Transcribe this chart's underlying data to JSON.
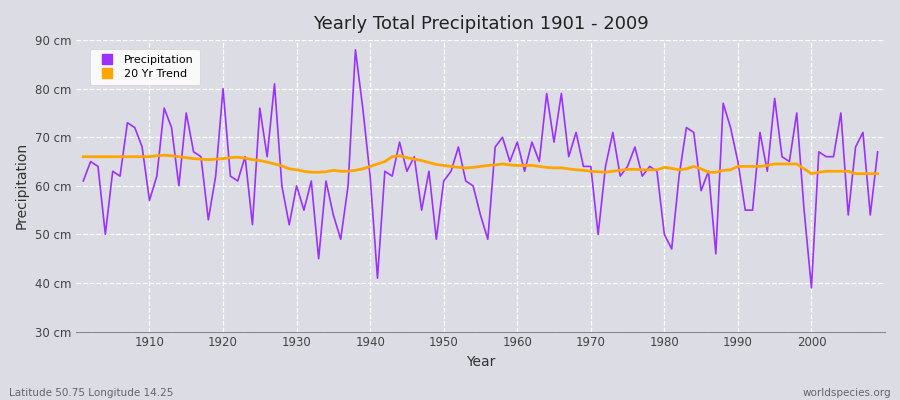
{
  "title": "Yearly Total Precipitation 1901 - 2009",
  "xlabel": "Year",
  "ylabel": "Precipitation",
  "subtitle_left": "Latitude 50.75 Longitude 14.25",
  "subtitle_right": "worldspecies.org",
  "years": [
    1901,
    1902,
    1903,
    1904,
    1905,
    1906,
    1907,
    1908,
    1909,
    1910,
    1911,
    1912,
    1913,
    1914,
    1915,
    1916,
    1917,
    1918,
    1919,
    1920,
    1921,
    1922,
    1923,
    1924,
    1925,
    1926,
    1927,
    1928,
    1929,
    1930,
    1931,
    1932,
    1933,
    1934,
    1935,
    1936,
    1937,
    1938,
    1939,
    1940,
    1941,
    1942,
    1943,
    1944,
    1945,
    1946,
    1947,
    1948,
    1949,
    1950,
    1951,
    1952,
    1953,
    1954,
    1955,
    1956,
    1957,
    1958,
    1959,
    1960,
    1961,
    1962,
    1963,
    1964,
    1965,
    1966,
    1967,
    1968,
    1969,
    1970,
    1971,
    1972,
    1973,
    1974,
    1975,
    1976,
    1977,
    1978,
    1979,
    1980,
    1981,
    1982,
    1983,
    1984,
    1985,
    1986,
    1987,
    1988,
    1989,
    1990,
    1991,
    1992,
    1993,
    1994,
    1995,
    1996,
    1997,
    1998,
    1999,
    2000,
    2001,
    2002,
    2003,
    2004,
    2005,
    2006,
    2007,
    2008,
    2009
  ],
  "precip": [
    61,
    65,
    64,
    50,
    63,
    62,
    73,
    72,
    68,
    57,
    62,
    76,
    72,
    60,
    75,
    67,
    66,
    53,
    62,
    80,
    62,
    61,
    66,
    52,
    76,
    66,
    81,
    60,
    52,
    60,
    55,
    61,
    45,
    61,
    54,
    49,
    60,
    88,
    76,
    62,
    41,
    63,
    62,
    69,
    63,
    66,
    55,
    63,
    49,
    61,
    63,
    68,
    61,
    60,
    54,
    49,
    68,
    70,
    65,
    69,
    63,
    69,
    65,
    79,
    69,
    79,
    66,
    71,
    64,
    64,
    50,
    64,
    71,
    62,
    64,
    68,
    62,
    64,
    63,
    50,
    47,
    62,
    72,
    71,
    59,
    63,
    46,
    77,
    72,
    65,
    55,
    55,
    71,
    63,
    78,
    66,
    65,
    75,
    55,
    39,
    67,
    66,
    66,
    75,
    54,
    68,
    71,
    54,
    67
  ],
  "trend": [
    66,
    66,
    66,
    66,
    66,
    66,
    66,
    66,
    66,
    66,
    66.2,
    66.3,
    66.2,
    66.0,
    65.8,
    65.6,
    65.5,
    65.4,
    65.5,
    65.6,
    65.8,
    65.9,
    65.7,
    65.4,
    65.2,
    64.9,
    64.5,
    64.1,
    63.5,
    63.3,
    63.0,
    62.8,
    62.8,
    62.9,
    63.2,
    63.0,
    63.0,
    63.2,
    63.5,
    64.0,
    64.5,
    65.0,
    66.0,
    66.2,
    65.8,
    65.5,
    65.2,
    64.8,
    64.4,
    64.2,
    64.0,
    63.8,
    63.7,
    63.8,
    64.0,
    64.2,
    64.3,
    64.5,
    64.3,
    64.2,
    64.2,
    64.2,
    64.0,
    63.8,
    63.7,
    63.7,
    63.5,
    63.3,
    63.2,
    63.0,
    62.9,
    62.8,
    63.0,
    63.2,
    63.4,
    63.4,
    63.3,
    63.3,
    63.3,
    63.8,
    63.6,
    63.3,
    63.5,
    64.0,
    63.5,
    62.8,
    62.8,
    63.2,
    63.3,
    64.0,
    64.0,
    64.0,
    64.0,
    64.2,
    64.5,
    64.5,
    64.5,
    64.5,
    63.5,
    62.5,
    62.8,
    63.0,
    63.0,
    63.0,
    63.0,
    62.5,
    62.5,
    62.5,
    62.5
  ],
  "precip_color": "#9B30FF",
  "trend_color": "#FFA500",
  "bg_color": "#DCDCE4",
  "plot_bg_color": "#DCDCE4",
  "grid_color": "#FFFFFF",
  "ylim": [
    30,
    90
  ],
  "yticks": [
    30,
    40,
    50,
    60,
    70,
    80,
    90
  ],
  "xlim": [
    1901,
    2009
  ]
}
